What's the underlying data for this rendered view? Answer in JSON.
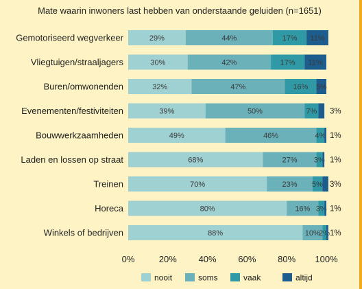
{
  "chart_data": {
    "type": "bar",
    "orientation": "horizontal",
    "stacked": true,
    "title": "Mate waarin inwoners last hebben van onderstaande geluiden (n=1651)",
    "categories": [
      "Gemotoriseerd wegverkeer",
      "Vliegtuigen/straaljagers",
      "Buren/omwonenden",
      "Evenementen/festiviteiten",
      "Bouwwerkzaamheden",
      "Laden en lossen op straat",
      "Treinen",
      "Horeca",
      "Winkels of bedrijven"
    ],
    "series": [
      {
        "name": "nooit",
        "values": [
          29,
          30,
          32,
          39,
          49,
          68,
          70,
          80,
          88
        ]
      },
      {
        "name": "soms",
        "values": [
          44,
          42,
          47,
          50,
          46,
          27,
          23,
          16,
          10
        ]
      },
      {
        "name": "vaak",
        "values": [
          17,
          17,
          16,
          7,
          4,
          3,
          5,
          3,
          2
        ]
      },
      {
        "name": "altijd",
        "values": [
          11,
          11,
          5,
          3,
          1,
          1,
          3,
          1,
          1
        ]
      }
    ],
    "xlim": [
      0,
      100
    ],
    "xticks": [
      "0%",
      "20%",
      "40%",
      "60%",
      "80%",
      "100%"
    ],
    "legend_position": "bottom",
    "grid": false,
    "colors": {
      "nooit": "#9fd0d2",
      "soms": "#6ab1ba",
      "vaak": "#2f9aa6",
      "altijd": "#1d5d8e"
    }
  }
}
